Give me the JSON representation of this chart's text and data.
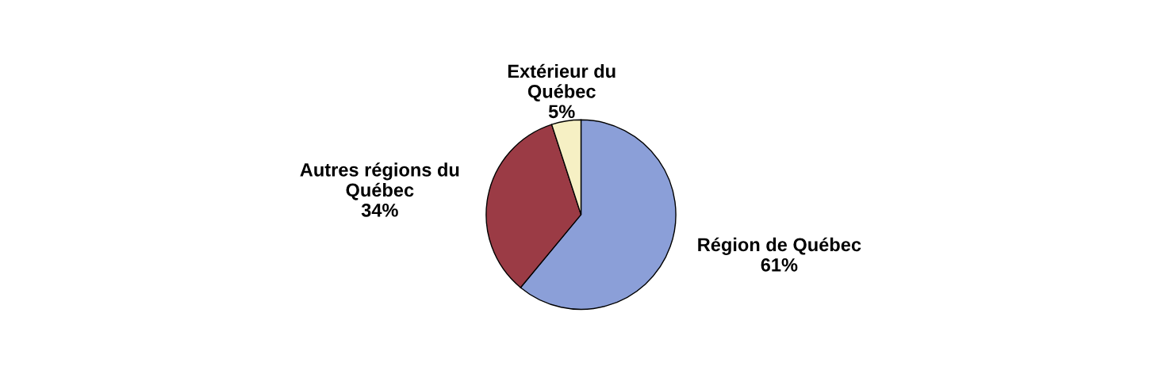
{
  "chart_data": {
    "type": "pie",
    "categories": [
      "Région de Québec",
      "Autres régions du\nQuébec",
      "Extérieur du\nQuébec"
    ],
    "values": [
      61,
      34,
      5
    ],
    "value_labels": [
      "61%",
      "34%",
      "5%"
    ],
    "colors": [
      "#8b9fd8",
      "#9b3b45",
      "#f6f0c4"
    ],
    "legend": false
  }
}
